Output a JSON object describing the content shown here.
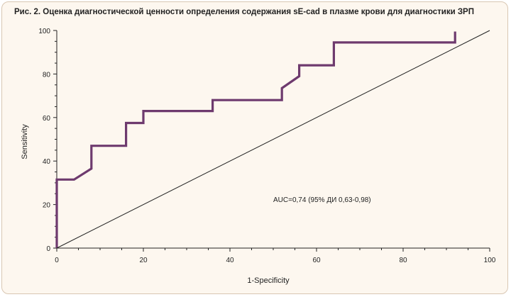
{
  "chart_data": {
    "type": "line",
    "title": "Рис. 2. Оценка диагностической ценности определения содержания sE-cad в плазме крови для диагностики ЗРП",
    "xlabel": "1-Specificity",
    "ylabel": "Sensitivity",
    "xlim": [
      0,
      100
    ],
    "ylim": [
      0,
      100
    ],
    "x_ticks": [
      0,
      20,
      40,
      60,
      80,
      100
    ],
    "y_ticks": [
      0,
      20,
      40,
      60,
      80,
      100
    ],
    "annotation": "AUC=0,74 (95% ДИ 0,63-0,98)",
    "series": [
      {
        "color": "#6e3a6e",
        "x": [
          0,
          0,
          4,
          8,
          8,
          16,
          16,
          20,
          20,
          36,
          36,
          52,
          52,
          56,
          56,
          64,
          64,
          92,
          92
        ],
        "y": [
          0,
          31.5,
          31.5,
          36.5,
          47,
          47,
          57.5,
          57.5,
          63,
          63,
          68,
          68,
          73.5,
          79,
          84,
          84,
          94.5,
          94.5,
          99.5
        ]
      },
      {
        "color": "#222222",
        "x": [
          0,
          100
        ],
        "y": [
          0,
          100
        ]
      }
    ],
    "grid": false
  }
}
